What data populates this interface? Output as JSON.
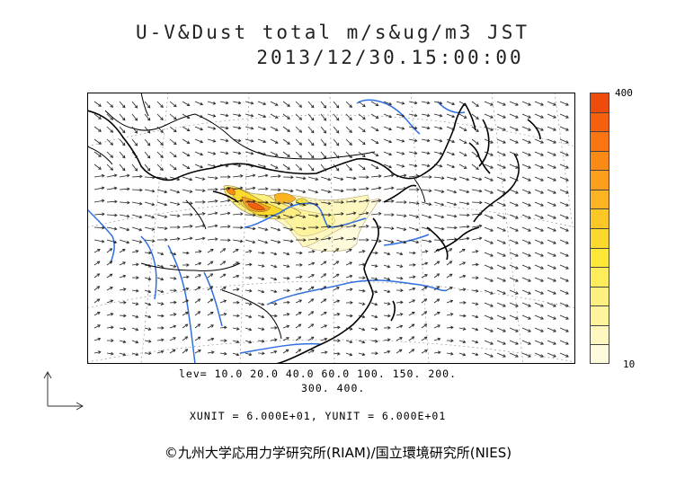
{
  "title": {
    "line1": "U-V&Dust total m/s&ug/m3 JST",
    "line2": "2013/12/30.15:00:00"
  },
  "colorbar": {
    "max_label": "400",
    "min_label": "10",
    "colors": [
      "#fefbdc",
      "#fef8c0",
      "#fef49e",
      "#fef080",
      "#fdec5c",
      "#fde83a",
      "#fdd92e",
      "#fdc728",
      "#fcb422",
      "#fb9f1c",
      "#fa8a16",
      "#f87512",
      "#f4600e",
      "#ee4c0c"
    ]
  },
  "levels": {
    "line1": "lev= 10.0 20.0 40.0 60.0 100. 150. 200.",
    "line2": "300. 400."
  },
  "units_text": "XUNIT = 6.000E+01, YUNIT = 6.000E+01",
  "copyright": "©九州大学応用力学研究所(RIAM)/国立環境研究所(NIES)",
  "icons": {
    "axes": "axes-arrow-icon"
  }
}
